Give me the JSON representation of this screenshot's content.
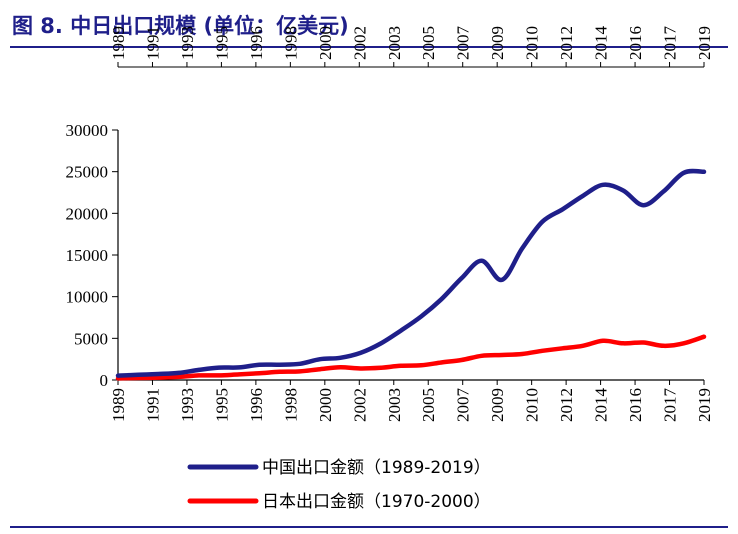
{
  "header": {
    "title": "图 8. 中日出口规模 (单位：亿美元)"
  },
  "chart_data": {
    "type": "line",
    "title": "",
    "xlabel": "",
    "ylabel": "",
    "ylim": [
      0,
      30000
    ],
    "yticks": [
      0,
      5000,
      10000,
      15000,
      20000,
      25000,
      30000
    ],
    "x_tick_labels": [
      "1989",
      "1991",
      "1993",
      "1995",
      "1996",
      "1998",
      "2000",
      "2002",
      "2003",
      "2005",
      "2007",
      "2009",
      "2010",
      "2012",
      "2014",
      "2016",
      "2017",
      "2019"
    ],
    "legend_position": "bottom",
    "series": [
      {
        "name": "中国出口金额（1989-2019）",
        "color": "#1f1f8a",
        "values": [
          525,
          621,
          719,
          849,
          1210,
          1488,
          1510,
          1828,
          1837,
          1949,
          2492,
          2661,
          3256,
          4382,
          5934,
          7620,
          9690,
          12200,
          14307,
          12016,
          15778,
          18984,
          20487,
          22090,
          23423,
          22735,
          20976,
          22633,
          24867,
          24990
        ]
      },
      {
        "name": "日本出口金额（1970-2000）",
        "color": "#ff0000",
        "values": [
          193,
          242,
          288,
          368,
          550,
          558,
          676,
          813,
          980,
          1030,
          1300,
          1520,
          1380,
          1470,
          1700,
          1760,
          2100,
          2400,
          2900,
          3000,
          3120,
          3500,
          3800,
          4100,
          4700,
          4400,
          4500,
          4100,
          4400,
          5200
        ]
      }
    ]
  }
}
